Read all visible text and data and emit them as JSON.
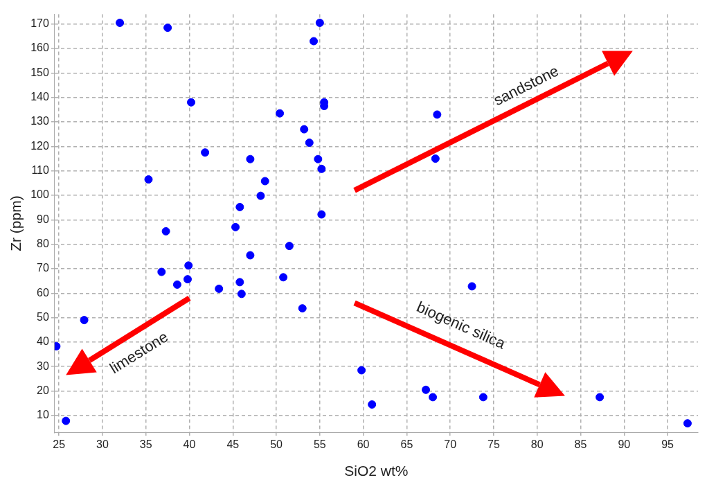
{
  "chart_data": {
    "type": "scatter",
    "xlabel": "SiO2 wt%",
    "ylabel": "Zr (ppm)",
    "x": [
      32,
      37.5,
      55,
      54.3,
      40.2,
      55.5,
      55.5,
      50.4,
      53.2,
      53.8,
      41.8,
      47,
      54.8,
      55.2,
      35.3,
      48.7,
      48.2,
      45.8,
      55.2,
      45.3,
      37.3,
      51.5,
      47,
      39.9,
      36.8,
      39.8,
      50.8,
      38.6,
      45.8,
      43.4,
      46,
      53,
      27.9,
      24.7,
      25.8,
      59.8,
      61,
      67.2,
      68,
      73.8,
      72.5,
      87.2,
      97.3,
      68.5,
      68.3
    ],
    "values": [
      170.5,
      168.5,
      170.5,
      163,
      138,
      138,
      136.5,
      133.5,
      127,
      121.5,
      117.5,
      114.8,
      114.8,
      110.8,
      106.5,
      105.8,
      99.8,
      95.2,
      92.2,
      87,
      85.3,
      79.3,
      75.5,
      71.3,
      68.7,
      65.7,
      66.5,
      63.5,
      64.5,
      61.8,
      59.7,
      53.8,
      49,
      38.3,
      7.8,
      28.5,
      14.5,
      20.5,
      17.5,
      17.5,
      62.8,
      17.5,
      6.8,
      133,
      115
    ],
    "color": "#0000ff",
    "marker": "circle",
    "xlim": [
      24.5,
      98.5
    ],
    "xticks": [
      25,
      30,
      35,
      40,
      45,
      50,
      55,
      60,
      65,
      70,
      75,
      80,
      85,
      90,
      95
    ],
    "ylim": [
      3,
      174
    ],
    "yticks": [
      10,
      20,
      30,
      40,
      50,
      60,
      70,
      80,
      90,
      100,
      110,
      120,
      130,
      140,
      150,
      160,
      170
    ],
    "grid": true,
    "legend": false,
    "annotations": [
      "sandstone",
      "limestone",
      "biogenic silica"
    ]
  }
}
